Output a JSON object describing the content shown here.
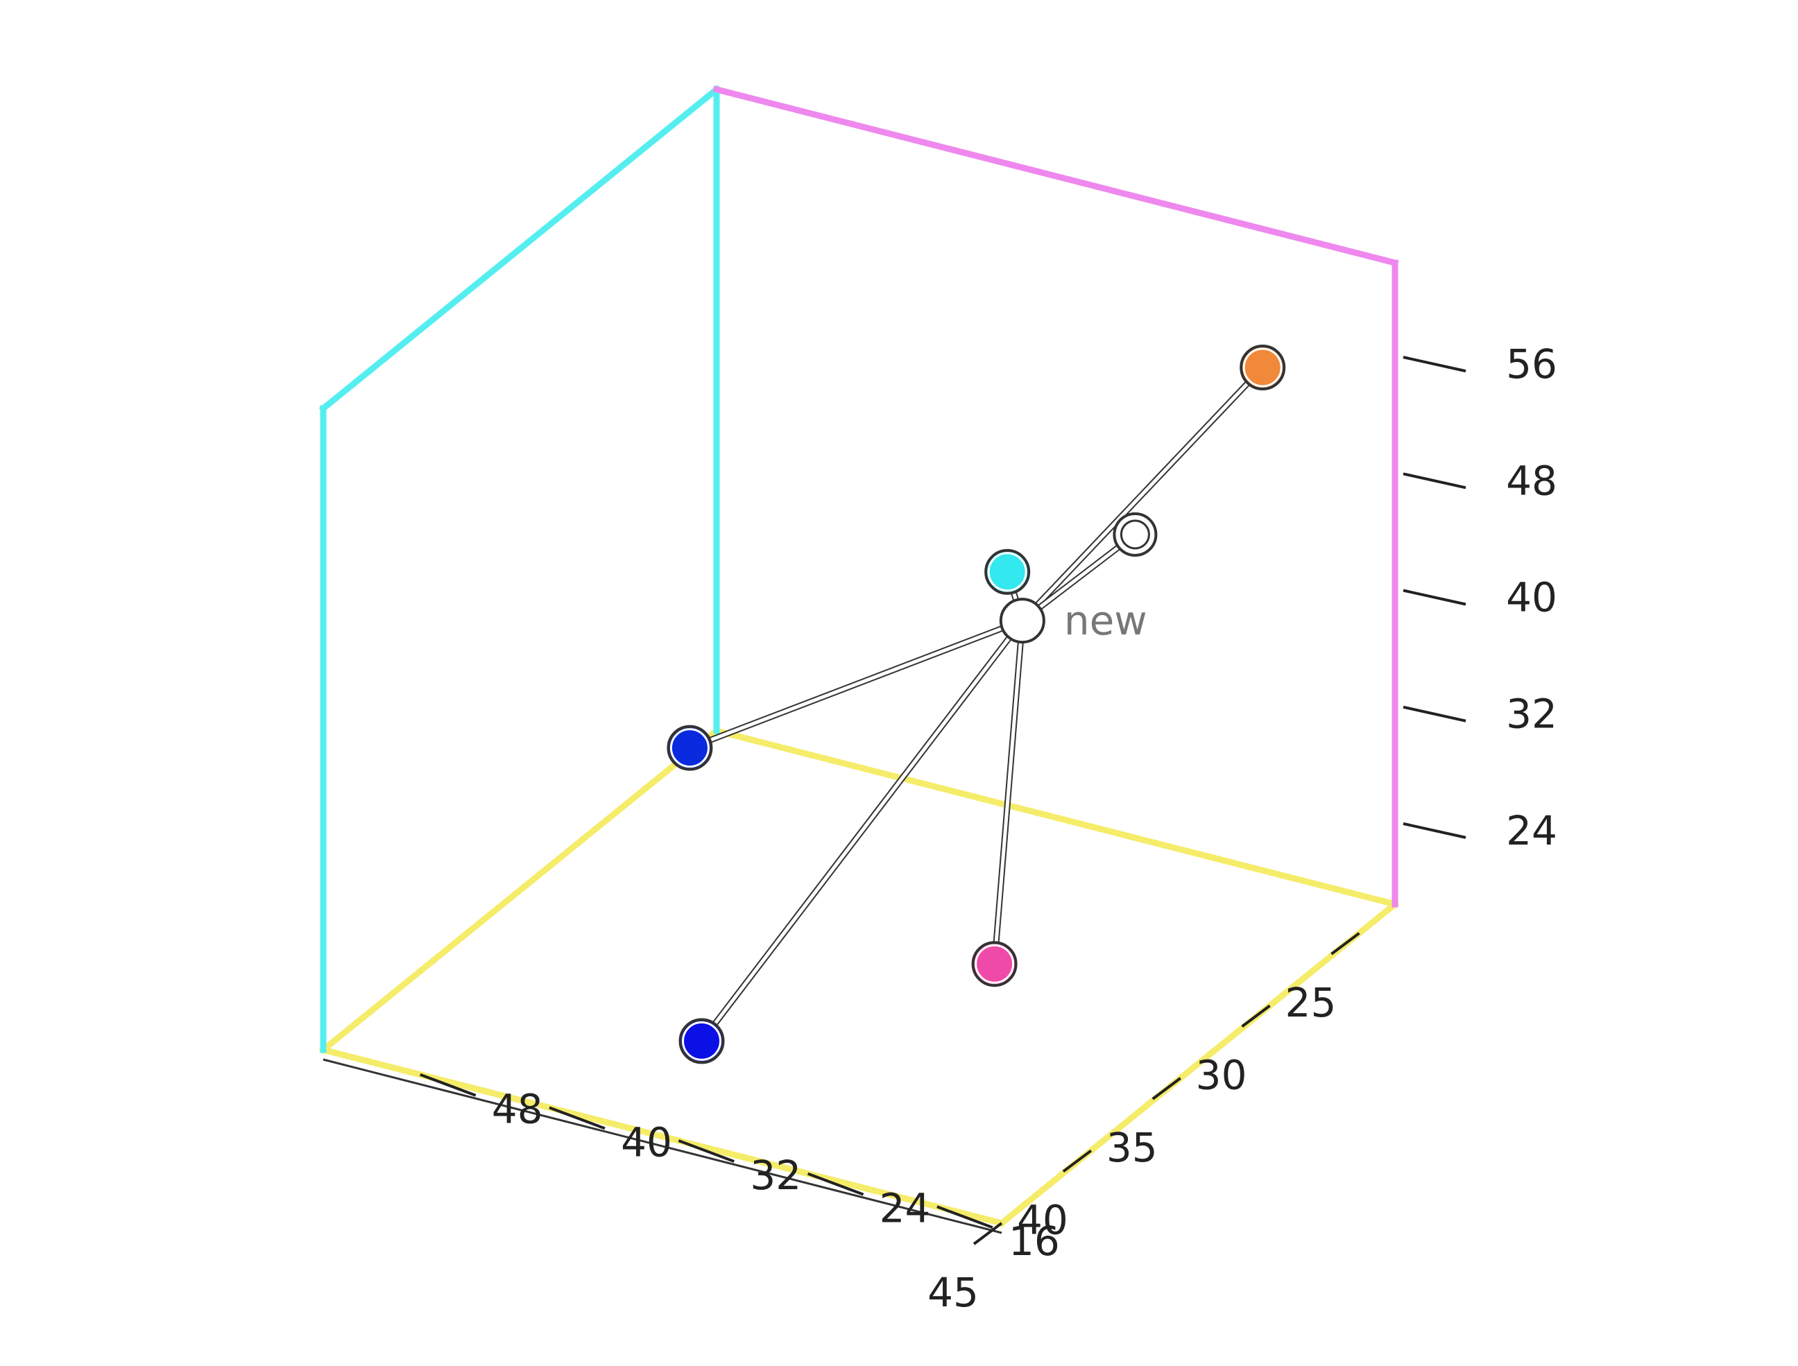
{
  "chart_data": {
    "type": "scatter",
    "subtype": "3d-scatter-knn",
    "title": "",
    "axes": {
      "x": {
        "label": "",
        "range": [
          23,
          45
        ],
        "ticks": [
          25,
          30,
          35,
          40,
          45
        ]
      },
      "y": {
        "label": "",
        "range": [
          12,
          54
        ],
        "ticks": [
          16,
          24,
          32,
          40,
          48
        ]
      },
      "z": {
        "label": "",
        "range": [
          18,
          62
        ],
        "ticks": [
          24,
          32,
          40,
          48,
          56
        ]
      }
    },
    "grid": false,
    "pane_colors": {
      "back_left_wall": "#55eef0",
      "back_right_wall": "#ee88ee",
      "floor": "#f5ec6a"
    },
    "points": [
      {
        "x": 25.4,
        "y": 53,
        "z": 19.5,
        "color": "#0a2ae0"
      },
      {
        "x": 41.0,
        "y": 35,
        "z": 20.0,
        "color": "#0a10e6"
      },
      {
        "x": 23.0,
        "y": 36,
        "z": 34.0,
        "color": "#33e8ee"
      },
      {
        "x": 44.5,
        "y": 13,
        "z": 35.0,
        "color": "#f04aa8"
      },
      {
        "x": 29.5,
        "y": 13,
        "z": 61.0,
        "color": "#f08a3a"
      },
      {
        "x": 28.5,
        "y": 22,
        "z": 46.0,
        "color": "#ffffff",
        "hollow": true
      },
      {
        "x": 33.0,
        "y": 24,
        "z": 44.0,
        "color": "#ffffff",
        "label": "new",
        "query": true
      }
    ]
  }
}
